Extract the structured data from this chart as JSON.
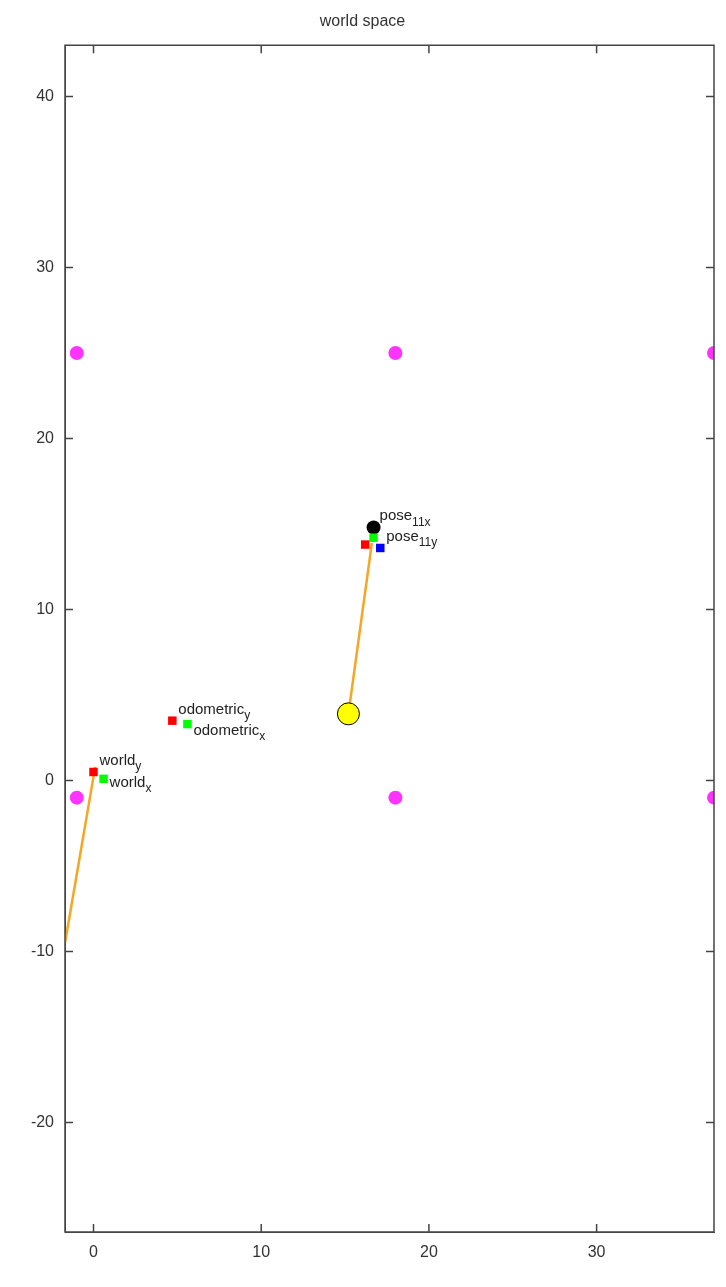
{
  "chart_data": {
    "type": "scatter",
    "title": "world space",
    "xlim": [
      -1.7,
      37
    ],
    "ylim": [
      -26.4,
      43
    ],
    "xticks": [
      0,
      10,
      20,
      30
    ],
    "yticks": [
      -20,
      -10,
      0,
      10,
      20,
      30,
      40
    ],
    "marker": "circle",
    "series": [
      {
        "color": "#ff33ff",
        "x": [
          -1,
          18,
          37,
          -1,
          18,
          37
        ],
        "values": [
          25,
          25,
          25,
          -1,
          -1,
          -1
        ]
      },
      {
        "type": "line",
        "marker": "none",
        "color": "#f5a623",
        "x": [
          -1.7,
          0.1
        ],
        "values": [
          -9.5,
          0.8
        ]
      },
      {
        "type": "line",
        "marker": "none",
        "color": "#f5a623",
        "x": [
          15.2,
          16.6
        ],
        "values": [
          3.9,
          13.9
        ]
      },
      {
        "marker": "square",
        "color": "#ff0000",
        "x": [
          0,
          4.7,
          16.2
        ],
        "values": [
          0.5,
          3.5,
          13.8
        ]
      },
      {
        "marker": "square",
        "color": "#00ff00",
        "x": [
          0.6,
          5.6,
          16.7
        ],
        "values": [
          0.1,
          3.3,
          14.2
        ]
      },
      {
        "marker": "square",
        "color": "#0000ff",
        "x": [
          17.1
        ],
        "values": [
          13.6
        ]
      },
      {
        "color": "#000000",
        "x": [
          16.7
        ],
        "values": [
          14.8
        ]
      },
      {
        "type": "bubble",
        "color": "#ffff00",
        "x": [
          15.2
        ],
        "values": [
          3.9
        ],
        "sizes": [
          1
        ]
      }
    ],
    "annotations": [
      {
        "text": "world$_{y}$",
        "x": 0,
        "y": 0.5
      },
      {
        "text": "world$_{x}$",
        "x": 0.6,
        "y": 0.1
      },
      {
        "text": "odometric$_{y}$",
        "x": 4.7,
        "y": 3.5
      },
      {
        "text": "odometric$_{x}$",
        "x": 5.6,
        "y": 3.3
      },
      {
        "text": "pose$_{11x}$",
        "x": 16.7,
        "y": 14.8
      },
      {
        "text": "pose$_{11y}$",
        "x": 17.1,
        "y": 13.6
      }
    ]
  }
}
